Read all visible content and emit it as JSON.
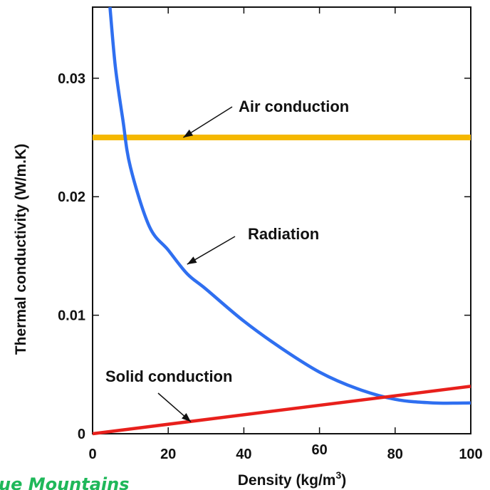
{
  "chart_data": {
    "type": "line",
    "xlabel": "Density (kg/m",
    "xlabel_sup": "3",
    "xlabel_tail": ")",
    "ylabel": "Thermal conductivity (W/m.K)",
    "xlim": [
      0,
      100
    ],
    "ylim": [
      0,
      0.036
    ],
    "x_ticks": [
      0,
      20,
      40,
      60,
      80,
      100
    ],
    "x_tick_labels": [
      "0",
      "20",
      "40",
      "60",
      "80",
      "100"
    ],
    "y_ticks": [
      0,
      0.01,
      0.02,
      0.03
    ],
    "y_tick_labels": [
      "0",
      "0.01",
      "0.02",
      "0.03"
    ],
    "grid": false,
    "series": [
      {
        "name": "Air conduction",
        "color": "#f5b800",
        "x": [
          0,
          100
        ],
        "y": [
          0.025,
          0.025
        ]
      },
      {
        "name": "Radiation",
        "color": "#2f6ff0",
        "x": [
          4.6,
          6,
          8,
          10,
          15,
          20,
          25,
          30,
          40,
          50,
          60,
          70,
          80,
          90,
          100
        ],
        "y": [
          0.036,
          0.031,
          0.0265,
          0.0225,
          0.0175,
          0.0155,
          0.0135,
          0.0122,
          0.0095,
          0.0072,
          0.0052,
          0.0038,
          0.0029,
          0.0026,
          0.0026
        ]
      },
      {
        "name": "Solid conduction",
        "color": "#e8201c",
        "x": [
          0,
          100
        ],
        "y": [
          0,
          0.004
        ]
      }
    ],
    "annotations": [
      {
        "text": "Air conduction",
        "arrow_to": [
          24,
          0.025
        ]
      },
      {
        "text": "Radiation",
        "arrow_to": [
          25,
          0.0143
        ]
      },
      {
        "text": "Solid conduction",
        "arrow_to": [
          26,
          0.001
        ]
      }
    ]
  },
  "watermark": {
    "text": "ue Mountains",
    "color": "#1fb85a"
  }
}
